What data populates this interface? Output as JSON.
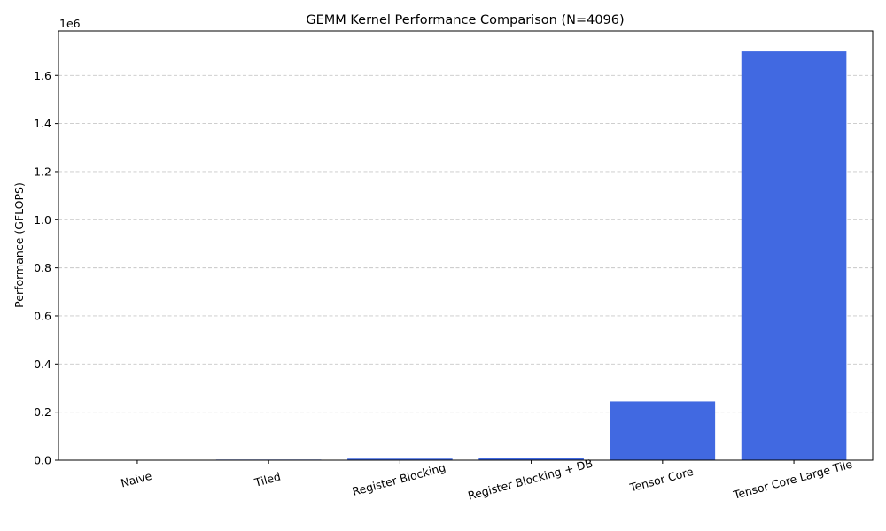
{
  "chart_data": {
    "type": "bar",
    "title": "GEMM Kernel Performance Comparison (N=4096)",
    "xlabel": "",
    "ylabel": "Performance (GFLOPS)",
    "y_offset_label": "1e6",
    "categories": [
      "Naive",
      "Tiled",
      "Register Blocking",
      "Register Blocking + DB",
      "Tensor Core",
      "Tensor Core Large Tile"
    ],
    "values": [
      1500,
      2500,
      6500,
      10500,
      245000,
      1700000
    ],
    "ylim": [
      0,
      1785000
    ],
    "y_ticks": [
      0,
      200000,
      400000,
      600000,
      800000,
      1000000,
      1200000,
      1400000,
      1600000
    ],
    "y_tick_labels": [
      "0.0",
      "0.2",
      "0.4",
      "0.6",
      "0.8",
      "1.0",
      "1.2",
      "1.4",
      "1.6"
    ],
    "x_tick_rotation_deg": 15,
    "grid": "y-dashed",
    "legend": "none",
    "bar_color": "#4169E1",
    "grid_color": "#c8c8c8"
  }
}
